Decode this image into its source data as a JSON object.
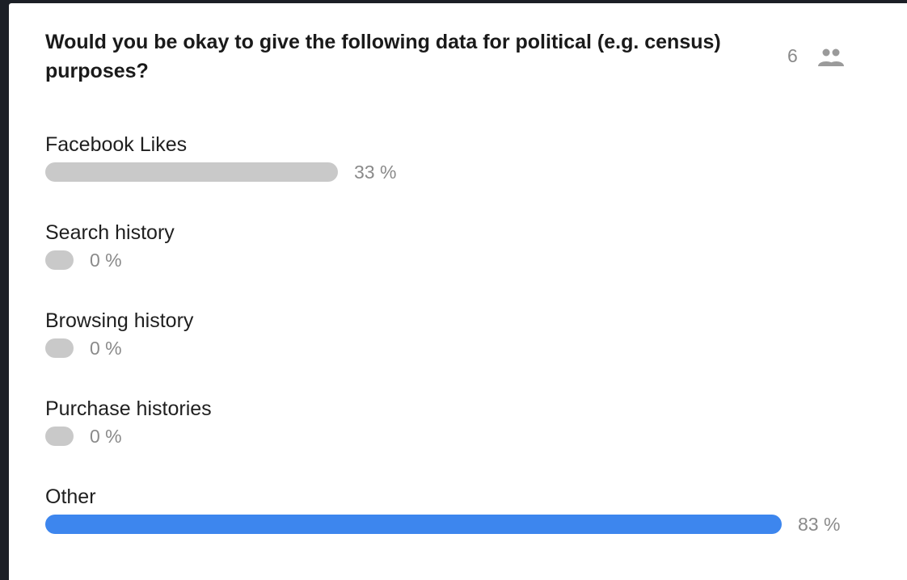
{
  "poll": {
    "question": "Would you be okay to give the following data for political (e.g. census) purposes?",
    "voter_count": "6",
    "voter_icon": "people-icon",
    "colors": {
      "bar_default": "#c9c9c9",
      "bar_leading": "#3d86ee",
      "text_muted": "#8a8a8a"
    },
    "options": [
      {
        "label": "Facebook Likes",
        "percent_text": "33 %",
        "percent": 33,
        "leading": false
      },
      {
        "label": "Search history",
        "percent_text": "0 %",
        "percent": 0,
        "leading": false
      },
      {
        "label": "Browsing history",
        "percent_text": "0 %",
        "percent": 0,
        "leading": false
      },
      {
        "label": "Purchase histories",
        "percent_text": "0 %",
        "percent": 0,
        "leading": false
      },
      {
        "label": "Other",
        "percent_text": "83 %",
        "percent": 83,
        "leading": true
      }
    ]
  }
}
